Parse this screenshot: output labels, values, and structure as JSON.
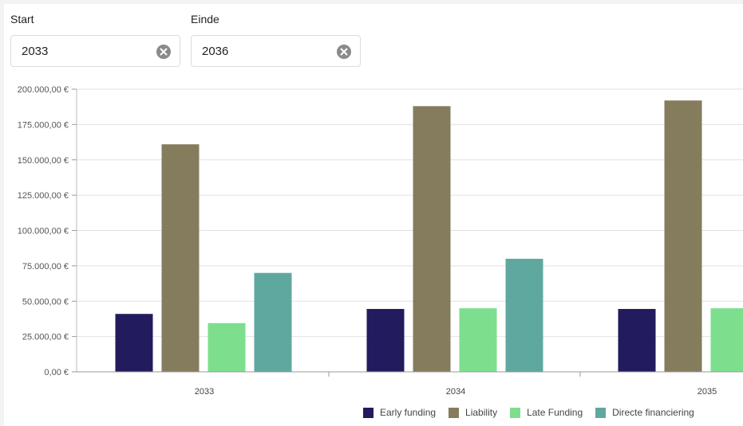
{
  "filters": {
    "start": {
      "label": "Start",
      "value": "2033"
    },
    "end": {
      "label": "Einde",
      "value": "2036"
    }
  },
  "icons": {
    "clear": "clear-circle-icon"
  },
  "chart_data": {
    "type": "bar",
    "title": "",
    "xlabel": "",
    "ylabel": "",
    "categories": [
      "2033",
      "2034",
      "2035"
    ],
    "ylim": [
      0,
      200000
    ],
    "yticks": [
      0,
      25000,
      50000,
      75000,
      100000,
      125000,
      150000,
      175000,
      200000
    ],
    "ytick_labels": [
      "0,00 €",
      "25.000,00 €",
      "50.000,00 €",
      "75.000,00 €",
      "100.000,00 €",
      "125.000,00 €",
      "150.000,00 €",
      "175.000,00 €",
      "200.000,00 €"
    ],
    "grid": true,
    "legend_position": "bottom-right",
    "series": [
      {
        "name": "Early funding",
        "color": "#221b5e",
        "values": [
          41000,
          44500,
          44500
        ]
      },
      {
        "name": "Liability",
        "color": "#857c5d",
        "values": [
          161000,
          188000,
          192000
        ]
      },
      {
        "name": "Late Funding",
        "color": "#7ddf8e",
        "values": [
          34500,
          45000,
          45000
        ]
      },
      {
        "name": "Directe financiering",
        "color": "#5fa8a0",
        "values": [
          70000,
          80000,
          null
        ]
      }
    ]
  }
}
